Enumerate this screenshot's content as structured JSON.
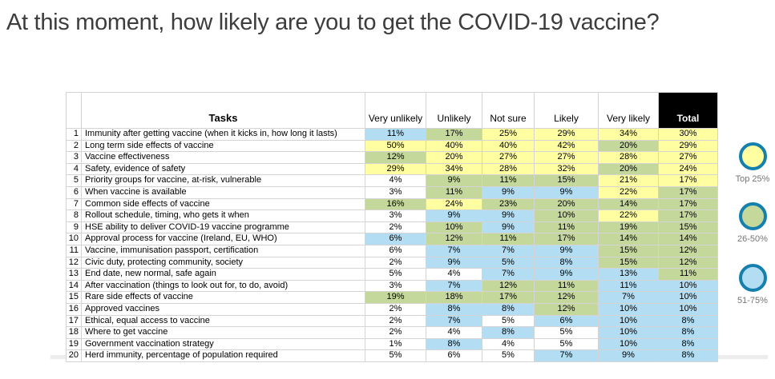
{
  "title": "At this moment, how likely are you to get the COVID-19 vaccine?",
  "colors": {
    "yellow": "#ffffa1",
    "green": "#c5d89c",
    "blue": "#b3ddf2",
    "white": "#ffffff",
    "legend_ring": "#1580ad",
    "total_header_bg": "#000000",
    "total_header_text": "#ffffff",
    "grid_line": "#d4d4d4",
    "title_text": "#3d3d3d",
    "legend_label_text": "#757575"
  },
  "chart_data": {
    "type": "heatmap",
    "title": "At this moment, how likely are you to get the COVID-19 vaccine?",
    "row_number_header": "",
    "task_header": "Tasks",
    "columns": [
      "Very unlikely",
      "Unlikely",
      "Not sure",
      "Likely",
      "Very likely",
      "Total"
    ],
    "value_format": "percent",
    "rows": [
      {
        "num": 1,
        "task": "Immunity after getting vaccine (when it kicks in, how long it lasts)",
        "values_pct": [
          11,
          17,
          25,
          29,
          34,
          30
        ],
        "cell_colors": [
          "blue",
          "green",
          "yellow",
          "yellow",
          "yellow",
          "yellow"
        ]
      },
      {
        "num": 2,
        "task": "Long term side effects of vaccine",
        "values_pct": [
          50,
          40,
          40,
          42,
          20,
          29
        ],
        "cell_colors": [
          "yellow",
          "yellow",
          "yellow",
          "yellow",
          "green",
          "yellow"
        ]
      },
      {
        "num": 3,
        "task": "Vaccine effectiveness",
        "values_pct": [
          12,
          20,
          27,
          27,
          28,
          27
        ],
        "cell_colors": [
          "green",
          "yellow",
          "yellow",
          "yellow",
          "yellow",
          "yellow"
        ]
      },
      {
        "num": 4,
        "task": "Safety, evidence of safety",
        "values_pct": [
          29,
          34,
          28,
          32,
          20,
          24
        ],
        "cell_colors": [
          "yellow",
          "yellow",
          "yellow",
          "yellow",
          "green",
          "yellow"
        ]
      },
      {
        "num": 5,
        "task": "Priority groups for vaccine, at-risk, vulnerable",
        "values_pct": [
          4,
          9,
          11,
          15,
          21,
          17
        ],
        "cell_colors": [
          "white",
          "green",
          "green",
          "green",
          "yellow",
          "yellow"
        ]
      },
      {
        "num": 6,
        "task": "When vaccine is available",
        "values_pct": [
          3,
          11,
          9,
          9,
          22,
          17
        ],
        "cell_colors": [
          "white",
          "green",
          "blue",
          "blue",
          "yellow",
          "green"
        ]
      },
      {
        "num": 7,
        "task": "Common side effects of vaccine",
        "values_pct": [
          16,
          24,
          23,
          20,
          14,
          17
        ],
        "cell_colors": [
          "green",
          "yellow",
          "green",
          "green",
          "green",
          "green"
        ]
      },
      {
        "num": 8,
        "task": "Rollout schedule, timing, who gets it when",
        "values_pct": [
          3,
          9,
          9,
          10,
          22,
          17
        ],
        "cell_colors": [
          "white",
          "blue",
          "blue",
          "green",
          "yellow",
          "green"
        ]
      },
      {
        "num": 9,
        "task": "HSE ability to deliver COVID-19 vaccine programme",
        "values_pct": [
          2,
          10,
          9,
          11,
          19,
          15
        ],
        "cell_colors": [
          "white",
          "green",
          "blue",
          "green",
          "green",
          "green"
        ]
      },
      {
        "num": 10,
        "task": "Approval process for vaccine (Ireland, EU, WHO)",
        "values_pct": [
          6,
          12,
          11,
          17,
          14,
          14
        ],
        "cell_colors": [
          "blue",
          "green",
          "green",
          "green",
          "green",
          "green"
        ]
      },
      {
        "num": 11,
        "task": "Vaccine, immunisation passport, certification",
        "values_pct": [
          6,
          7,
          7,
          9,
          15,
          12
        ],
        "cell_colors": [
          "white",
          "blue",
          "blue",
          "blue",
          "green",
          "green"
        ]
      },
      {
        "num": 12,
        "task": "Civic duty, protecting community, society",
        "values_pct": [
          2,
          9,
          5,
          8,
          15,
          12
        ],
        "cell_colors": [
          "white",
          "blue",
          "blue",
          "blue",
          "green",
          "green"
        ]
      },
      {
        "num": 13,
        "task": "End date, new normal, safe again",
        "values_pct": [
          5,
          4,
          7,
          9,
          13,
          11
        ],
        "cell_colors": [
          "white",
          "white",
          "blue",
          "blue",
          "blue",
          "green"
        ]
      },
      {
        "num": 14,
        "task": "After vaccination (things to look out for, to do, avoid)",
        "values_pct": [
          3,
          7,
          12,
          11,
          11,
          10
        ],
        "cell_colors": [
          "white",
          "blue",
          "green",
          "green",
          "blue",
          "blue"
        ]
      },
      {
        "num": 15,
        "task": "Rare side effects of vaccine",
        "values_pct": [
          19,
          18,
          17,
          12,
          7,
          10
        ],
        "cell_colors": [
          "green",
          "green",
          "green",
          "green",
          "blue",
          "blue"
        ]
      },
      {
        "num": 16,
        "task": "Approved vaccines",
        "values_pct": [
          2,
          8,
          8,
          12,
          10,
          10
        ],
        "cell_colors": [
          "white",
          "blue",
          "blue",
          "green",
          "blue",
          "blue"
        ]
      },
      {
        "num": 17,
        "task": "Ethical, equal access to vaccine",
        "values_pct": [
          2,
          7,
          5,
          6,
          10,
          8
        ],
        "cell_colors": [
          "white",
          "blue",
          "white",
          "blue",
          "blue",
          "blue"
        ]
      },
      {
        "num": 18,
        "task": "Where to get vaccine",
        "values_pct": [
          2,
          4,
          8,
          5,
          10,
          8
        ],
        "cell_colors": [
          "white",
          "white",
          "blue",
          "white",
          "blue",
          "blue"
        ]
      },
      {
        "num": 19,
        "task": "Government vaccination strategy",
        "values_pct": [
          1,
          8,
          4,
          5,
          10,
          8
        ],
        "cell_colors": [
          "white",
          "blue",
          "white",
          "white",
          "blue",
          "blue"
        ]
      },
      {
        "num": 20,
        "task": "Herd immunity, percentage of population required",
        "values_pct": [
          5,
          6,
          5,
          7,
          9,
          8
        ],
        "cell_colors": [
          "white",
          "white",
          "white",
          "blue",
          "blue",
          "blue"
        ]
      }
    ],
    "legend": {
      "position": "right",
      "items": [
        {
          "label": "Top 25%",
          "fill": "yellow"
        },
        {
          "label": "26-50%",
          "fill": "green"
        },
        {
          "label": "51-75%",
          "fill": "blue"
        }
      ]
    }
  }
}
